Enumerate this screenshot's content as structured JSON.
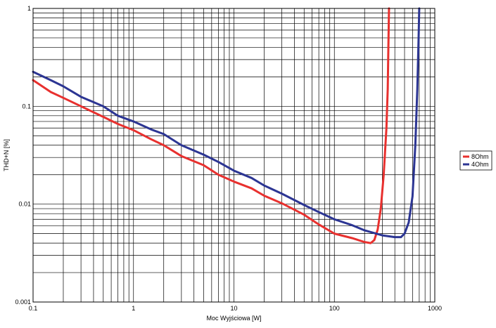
{
  "chart_data": {
    "type": "line",
    "xlabel": "Moc Wyjściowa [W]",
    "ylabel": "THD+N [%]",
    "x_scale": "log",
    "y_scale": "log",
    "xlim": [
      0.1,
      1000
    ],
    "ylim": [
      0.001,
      1
    ],
    "grid": true,
    "legend_position": "right",
    "x_ticks": [
      {
        "value": 0.1,
        "label": "0.1"
      },
      {
        "value": 1,
        "label": "1"
      },
      {
        "value": 10,
        "label": "10"
      },
      {
        "value": 100,
        "label": "100"
      },
      {
        "value": 1000,
        "label": "1000"
      }
    ],
    "y_ticks": [
      {
        "value": 0.001,
        "label": "0.001"
      },
      {
        "value": 0.01,
        "label": "0.01"
      },
      {
        "value": 0.1,
        "label": "0.1"
      },
      {
        "value": 1,
        "label": "1"
      }
    ],
    "series": [
      {
        "name": "8Ohm",
        "color": "#e8302e",
        "points": [
          [
            0.1,
            0.185
          ],
          [
            0.15,
            0.14
          ],
          [
            0.2,
            0.122
          ],
          [
            0.3,
            0.1
          ],
          [
            0.5,
            0.078
          ],
          [
            0.7,
            0.066
          ],
          [
            1,
            0.057
          ],
          [
            1.5,
            0.046
          ],
          [
            2,
            0.04
          ],
          [
            3,
            0.031
          ],
          [
            5,
            0.025
          ],
          [
            7,
            0.02
          ],
          [
            10,
            0.017
          ],
          [
            15,
            0.0145
          ],
          [
            20,
            0.0122
          ],
          [
            30,
            0.0102
          ],
          [
            50,
            0.0078
          ],
          [
            70,
            0.0062
          ],
          [
            100,
            0.005
          ],
          [
            150,
            0.0045
          ],
          [
            200,
            0.0041
          ],
          [
            230,
            0.004
          ],
          [
            250,
            0.0043
          ],
          [
            270,
            0.0055
          ],
          [
            290,
            0.009
          ],
          [
            310,
            0.02
          ],
          [
            330,
            0.06
          ],
          [
            340,
            0.15
          ],
          [
            345,
            0.4
          ],
          [
            350,
            1.0
          ]
        ]
      },
      {
        "name": "4Ohm",
        "color": "#2c3593",
        "points": [
          [
            0.1,
            0.225
          ],
          [
            0.15,
            0.185
          ],
          [
            0.2,
            0.16
          ],
          [
            0.3,
            0.125
          ],
          [
            0.5,
            0.1
          ],
          [
            0.7,
            0.08
          ],
          [
            1,
            0.07
          ],
          [
            1.5,
            0.058
          ],
          [
            2,
            0.052
          ],
          [
            3,
            0.04
          ],
          [
            5,
            0.032
          ],
          [
            7,
            0.027
          ],
          [
            10,
            0.022
          ],
          [
            15,
            0.0185
          ],
          [
            20,
            0.0155
          ],
          [
            30,
            0.0128
          ],
          [
            50,
            0.0098
          ],
          [
            70,
            0.0083
          ],
          [
            100,
            0.007
          ],
          [
            150,
            0.0061
          ],
          [
            200,
            0.0054
          ],
          [
            300,
            0.0048
          ],
          [
            400,
            0.0046
          ],
          [
            460,
            0.0046
          ],
          [
            500,
            0.005
          ],
          [
            550,
            0.0065
          ],
          [
            600,
            0.012
          ],
          [
            640,
            0.04
          ],
          [
            670,
            0.15
          ],
          [
            690,
            0.5
          ],
          [
            700,
            1.0
          ]
        ]
      }
    ]
  }
}
